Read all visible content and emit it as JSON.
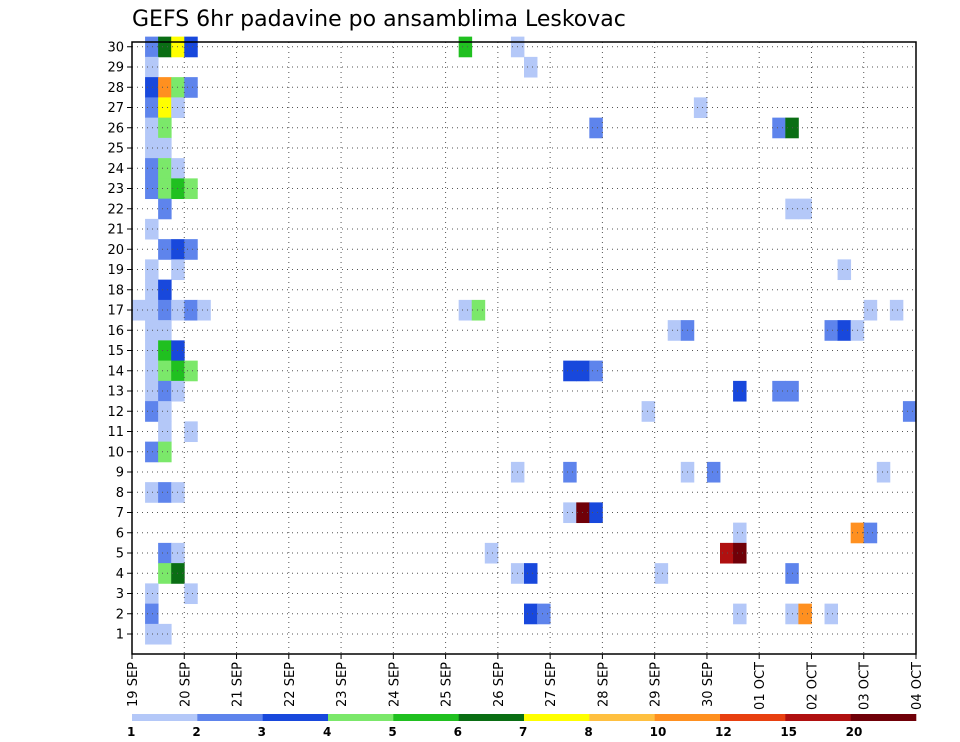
{
  "chart_data": {
    "type": "heatmap",
    "title": "GEFS 6hr padavine po ansamblima Leskovac",
    "xlabel": "",
    "ylabel": "",
    "x_tick_labels": [
      "19 SEP",
      "20 SEP",
      "21 SEP",
      "22 SEP",
      "23 SEP",
      "24 SEP",
      "25 SEP",
      "26 SEP",
      "27 SEP",
      "28 SEP",
      "29 SEP",
      "30 SEP",
      "01 OCT",
      "02 OCT",
      "03 OCT",
      "04 OCT"
    ],
    "y_tick_labels": [
      "1",
      "2",
      "3",
      "4",
      "5",
      "6",
      "7",
      "8",
      "9",
      "10",
      "11",
      "12",
      "13",
      "14",
      "15",
      "16",
      "17",
      "18",
      "19",
      "20",
      "21",
      "22",
      "23",
      "24",
      "25",
      "26",
      "27",
      "28",
      "29",
      "30"
    ],
    "time_steps_per_day": 4,
    "member_range": [
      1,
      30
    ],
    "grid": true,
    "colorbar_labels": [
      "1",
      "2",
      "3",
      "4",
      "5",
      "6",
      "7",
      "8",
      "10",
      "12",
      "15",
      "20"
    ],
    "colorbar_colors": [
      "#b4c8f8",
      "#5e84ec",
      "#1848dc",
      "#7be86a",
      "#20c020",
      "#0a6e14",
      "#ffff00",
      "#ffc040",
      "#ff9020",
      "#e84010",
      "#b01010",
      "#700008"
    ],
    "cells": [
      {
        "member": 30,
        "t": 1,
        "c": 1
      },
      {
        "member": 30,
        "t": 2,
        "c": 5
      },
      {
        "member": 30,
        "t": 3,
        "c": 6
      },
      {
        "member": 30,
        "t": 4,
        "c": 2
      },
      {
        "member": 30,
        "t": 25,
        "c": 4
      },
      {
        "member": 30,
        "t": 29,
        "c": 0
      },
      {
        "member": 29,
        "t": 1,
        "c": 0
      },
      {
        "member": 29,
        "t": 30,
        "c": 0
      },
      {
        "member": 28,
        "t": 1,
        "c": 2
      },
      {
        "member": 28,
        "t": 2,
        "c": 8
      },
      {
        "member": 28,
        "t": 3,
        "c": 3
      },
      {
        "member": 28,
        "t": 4,
        "c": 1
      },
      {
        "member": 27,
        "t": 1,
        "c": 1
      },
      {
        "member": 27,
        "t": 2,
        "c": 6
      },
      {
        "member": 27,
        "t": 3,
        "c": 0
      },
      {
        "member": 27,
        "t": 43,
        "c": 0
      },
      {
        "member": 26,
        "t": 1,
        "c": 0
      },
      {
        "member": 26,
        "t": 2,
        "c": 3
      },
      {
        "member": 26,
        "t": 35,
        "c": 1
      },
      {
        "member": 26,
        "t": 49,
        "c": 1
      },
      {
        "member": 26,
        "t": 50,
        "c": 5
      },
      {
        "member": 25,
        "t": 1,
        "c": 0
      },
      {
        "member": 25,
        "t": 2,
        "c": 0
      },
      {
        "member": 24,
        "t": 1,
        "c": 1
      },
      {
        "member": 24,
        "t": 2,
        "c": 3
      },
      {
        "member": 24,
        "t": 3,
        "c": 0
      },
      {
        "member": 23,
        "t": 1,
        "c": 1
      },
      {
        "member": 23,
        "t": 2,
        "c": 3
      },
      {
        "member": 23,
        "t": 3,
        "c": 4
      },
      {
        "member": 23,
        "t": 4,
        "c": 3
      },
      {
        "member": 22,
        "t": 2,
        "c": 1
      },
      {
        "member": 22,
        "t": 50,
        "c": 0
      },
      {
        "member": 22,
        "t": 51,
        "c": 0
      },
      {
        "member": 21,
        "t": 1,
        "c": 0
      },
      {
        "member": 20,
        "t": 2,
        "c": 1
      },
      {
        "member": 20,
        "t": 3,
        "c": 2
      },
      {
        "member": 20,
        "t": 4,
        "c": 1
      },
      {
        "member": 19,
        "t": 1,
        "c": 0
      },
      {
        "member": 19,
        "t": 3,
        "c": 0
      },
      {
        "member": 19,
        "t": 54,
        "c": 0
      },
      {
        "member": 18,
        "t": 1,
        "c": 0
      },
      {
        "member": 18,
        "t": 2,
        "c": 2
      },
      {
        "member": 17,
        "t": 0,
        "c": 0
      },
      {
        "member": 17,
        "t": 1,
        "c": 0
      },
      {
        "member": 17,
        "t": 2,
        "c": 1
      },
      {
        "member": 17,
        "t": 3,
        "c": 0
      },
      {
        "member": 17,
        "t": 4,
        "c": 1
      },
      {
        "member": 17,
        "t": 5,
        "c": 0
      },
      {
        "member": 17,
        "t": 25,
        "c": 0
      },
      {
        "member": 17,
        "t": 26,
        "c": 3
      },
      {
        "member": 17,
        "t": 56,
        "c": 0
      },
      {
        "member": 17,
        "t": 58,
        "c": 0
      },
      {
        "member": 16,
        "t": 1,
        "c": 0
      },
      {
        "member": 16,
        "t": 2,
        "c": 0
      },
      {
        "member": 16,
        "t": 41,
        "c": 0
      },
      {
        "member": 16,
        "t": 42,
        "c": 1
      },
      {
        "member": 16,
        "t": 53,
        "c": 1
      },
      {
        "member": 16,
        "t": 54,
        "c": 2
      },
      {
        "member": 16,
        "t": 55,
        "c": 0
      },
      {
        "member": 15,
        "t": 1,
        "c": 0
      },
      {
        "member": 15,
        "t": 2,
        "c": 4
      },
      {
        "member": 15,
        "t": 3,
        "c": 2
      },
      {
        "member": 14,
        "t": 1,
        "c": 0
      },
      {
        "member": 14,
        "t": 2,
        "c": 3
      },
      {
        "member": 14,
        "t": 3,
        "c": 4
      },
      {
        "member": 14,
        "t": 4,
        "c": 3
      },
      {
        "member": 14,
        "t": 33,
        "c": 2
      },
      {
        "member": 14,
        "t": 34,
        "c": 2
      },
      {
        "member": 14,
        "t": 35,
        "c": 1
      },
      {
        "member": 13,
        "t": 1,
        "c": 0
      },
      {
        "member": 13,
        "t": 2,
        "c": 1
      },
      {
        "member": 13,
        "t": 3,
        "c": 0
      },
      {
        "member": 13,
        "t": 46,
        "c": 2
      },
      {
        "member": 13,
        "t": 49,
        "c": 1
      },
      {
        "member": 13,
        "t": 50,
        "c": 1
      },
      {
        "member": 12,
        "t": 1,
        "c": 1
      },
      {
        "member": 12,
        "t": 2,
        "c": 0
      },
      {
        "member": 12,
        "t": 39,
        "c": 0
      },
      {
        "member": 12,
        "t": 59,
        "c": 1
      },
      {
        "member": 11,
        "t": 2,
        "c": 0
      },
      {
        "member": 11,
        "t": 4,
        "c": 0
      },
      {
        "member": 10,
        "t": 1,
        "c": 1
      },
      {
        "member": 10,
        "t": 2,
        "c": 3
      },
      {
        "member": 9,
        "t": 29,
        "c": 0
      },
      {
        "member": 9,
        "t": 33,
        "c": 1
      },
      {
        "member": 9,
        "t": 42,
        "c": 0
      },
      {
        "member": 9,
        "t": 44,
        "c": 1
      },
      {
        "member": 9,
        "t": 57,
        "c": 0
      },
      {
        "member": 8,
        "t": 1,
        "c": 0
      },
      {
        "member": 8,
        "t": 2,
        "c": 1
      },
      {
        "member": 8,
        "t": 3,
        "c": 0
      },
      {
        "member": 7,
        "t": 33,
        "c": 0
      },
      {
        "member": 7,
        "t": 34,
        "c": 11
      },
      {
        "member": 7,
        "t": 35,
        "c": 2
      },
      {
        "member": 6,
        "t": 46,
        "c": 0
      },
      {
        "member": 6,
        "t": 55,
        "c": 8
      },
      {
        "member": 6,
        "t": 56,
        "c": 1
      },
      {
        "member": 5,
        "t": 2,
        "c": 1
      },
      {
        "member": 5,
        "t": 3,
        "c": 0
      },
      {
        "member": 5,
        "t": 27,
        "c": 0
      },
      {
        "member": 5,
        "t": 45,
        "c": 10
      },
      {
        "member": 5,
        "t": 46,
        "c": 11
      },
      {
        "member": 4,
        "t": 2,
        "c": 3
      },
      {
        "member": 4,
        "t": 3,
        "c": 5
      },
      {
        "member": 4,
        "t": 29,
        "c": 0
      },
      {
        "member": 4,
        "t": 30,
        "c": 2
      },
      {
        "member": 4,
        "t": 40,
        "c": 0
      },
      {
        "member": 4,
        "t": 50,
        "c": 1
      },
      {
        "member": 3,
        "t": 1,
        "c": 0
      },
      {
        "member": 3,
        "t": 4,
        "c": 0
      },
      {
        "member": 2,
        "t": 1,
        "c": 1
      },
      {
        "member": 2,
        "t": 30,
        "c": 2
      },
      {
        "member": 2,
        "t": 31,
        "c": 1
      },
      {
        "member": 2,
        "t": 46,
        "c": 0
      },
      {
        "member": 2,
        "t": 50,
        "c": 0
      },
      {
        "member": 2,
        "t": 51,
        "c": 8
      },
      {
        "member": 2,
        "t": 53,
        "c": 0
      },
      {
        "member": 1,
        "t": 1,
        "c": 0
      },
      {
        "member": 1,
        "t": 2,
        "c": 0
      }
    ]
  }
}
